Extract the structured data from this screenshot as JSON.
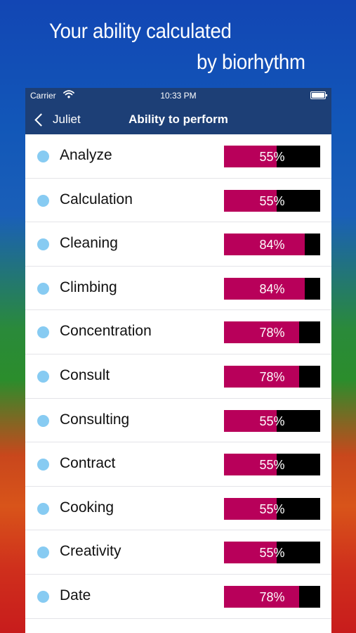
{
  "promo": {
    "line1": "Your ability calculated",
    "line2": "by biorhythm"
  },
  "status_bar": {
    "carrier": "Carrier",
    "time": "10:33 PM"
  },
  "nav": {
    "back_label": "Juliet",
    "title": "Ability to perform"
  },
  "colors": {
    "nav_bg": "#1d3f76",
    "bar_fill": "#b8005a",
    "bar_empty": "#000000",
    "dot": "#87cbf2"
  },
  "items": [
    {
      "name": "Analyze",
      "percent_label": "55%",
      "value": 55
    },
    {
      "name": "Calculation",
      "percent_label": "55%",
      "value": 55
    },
    {
      "name": "Cleaning",
      "percent_label": "84%",
      "value": 84
    },
    {
      "name": "Climbing",
      "percent_label": "84%",
      "value": 84
    },
    {
      "name": "Concentration",
      "percent_label": "78%",
      "value": 78
    },
    {
      "name": "Consult",
      "percent_label": "78%",
      "value": 78
    },
    {
      "name": "Consulting",
      "percent_label": "55%",
      "value": 55
    },
    {
      "name": "Contract",
      "percent_label": "55%",
      "value": 55
    },
    {
      "name": "Cooking",
      "percent_label": "55%",
      "value": 55
    },
    {
      "name": "Creativity",
      "percent_label": "55%",
      "value": 55
    },
    {
      "name": "Date",
      "percent_label": "78%",
      "value": 78
    }
  ]
}
